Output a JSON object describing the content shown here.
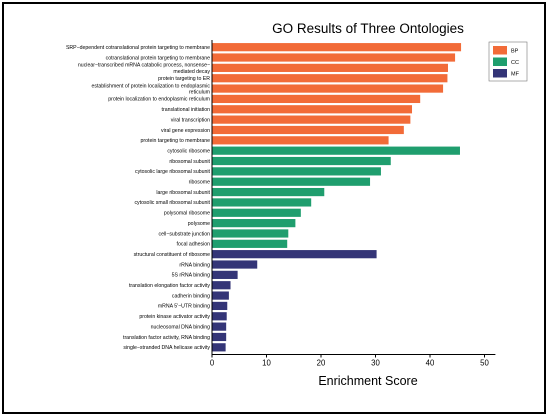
{
  "chart_data": {
    "type": "bar",
    "orientation": "horizontal",
    "title": "GO Results of Three Ontologies",
    "xlabel": "Enrichment Score",
    "ylabel": "",
    "xlim": [
      0,
      52
    ],
    "xticks": [
      0,
      10,
      20,
      30,
      40,
      50
    ],
    "grid": false,
    "legend_position": "top-right",
    "colors": {
      "BP": "#f26b38",
      "CC": "#1f9e6e",
      "MF": "#343577"
    },
    "legend": [
      "BP",
      "CC",
      "MF"
    ],
    "bars": [
      {
        "group": "BP",
        "lines": [
          "SRP−dependent cotranslational protein targeting to membrane"
        ],
        "value": 45.7
      },
      {
        "group": "BP",
        "lines": [
          "cotranslational protein targeting to membrane"
        ],
        "value": 44.6
      },
      {
        "group": "BP",
        "lines": [
          "nuclear−transcribed mRNA catabolic process, nonsense−",
          "mediated decay"
        ],
        "value": 43.3
      },
      {
        "group": "BP",
        "lines": [
          "protein targeting to ER"
        ],
        "value": 43.2
      },
      {
        "group": "BP",
        "lines": [
          "establishment of protein localization to endoplasmic",
          "reticulum"
        ],
        "value": 42.4
      },
      {
        "group": "BP",
        "lines": [
          "protein localization to endoplasmic reticulum"
        ],
        "value": 38.2
      },
      {
        "group": "BP",
        "lines": [
          "translational initiation"
        ],
        "value": 36.7
      },
      {
        "group": "BP",
        "lines": [
          "viral transcription"
        ],
        "value": 36.4
      },
      {
        "group": "BP",
        "lines": [
          "viral gene expression"
        ],
        "value": 35.2
      },
      {
        "group": "BP",
        "lines": [
          "protein targeting to membrane"
        ],
        "value": 32.4
      },
      {
        "group": "CC",
        "lines": [
          "cytosolic ribosome"
        ],
        "value": 45.5
      },
      {
        "group": "CC",
        "lines": [
          "ribosomal subunit"
        ],
        "value": 32.8
      },
      {
        "group": "CC",
        "lines": [
          "cytosolic large ribosomal subunit"
        ],
        "value": 31.0
      },
      {
        "group": "CC",
        "lines": [
          "ribosome"
        ],
        "value": 29.0
      },
      {
        "group": "CC",
        "lines": [
          "large ribosomal subunit"
        ],
        "value": 20.6
      },
      {
        "group": "CC",
        "lines": [
          "cytosolic small ribosomal subunit"
        ],
        "value": 18.2
      },
      {
        "group": "CC",
        "lines": [
          "polysomal ribosome"
        ],
        "value": 16.3
      },
      {
        "group": "CC",
        "lines": [
          "polysome"
        ],
        "value": 15.3
      },
      {
        "group": "CC",
        "lines": [
          "cell−substrate junction"
        ],
        "value": 14.0
      },
      {
        "group": "CC",
        "lines": [
          "focal adhesion"
        ],
        "value": 13.8
      },
      {
        "group": "MF",
        "lines": [
          "structural constituent of ribosome"
        ],
        "value": 30.2
      },
      {
        "group": "MF",
        "lines": [
          "rRNA binding"
        ],
        "value": 8.3
      },
      {
        "group": "MF",
        "lines": [
          "5S rRNA binding"
        ],
        "value": 4.7
      },
      {
        "group": "MF",
        "lines": [
          "translation elongation factor activity"
        ],
        "value": 3.4
      },
      {
        "group": "MF",
        "lines": [
          "cadherin binding"
        ],
        "value": 3.1
      },
      {
        "group": "MF",
        "lines": [
          "mRNA 5′−UTR binding"
        ],
        "value": 2.8
      },
      {
        "group": "MF",
        "lines": [
          "protein kinase activator activity"
        ],
        "value": 2.7
      },
      {
        "group": "MF",
        "lines": [
          "nucleosomal DNA binding"
        ],
        "value": 2.6
      },
      {
        "group": "MF",
        "lines": [
          "translation factor activity, RNA binding"
        ],
        "value": 2.6
      },
      {
        "group": "MF",
        "lines": [
          "single−stranded DNA helicase activity"
        ],
        "value": 2.5
      }
    ]
  }
}
